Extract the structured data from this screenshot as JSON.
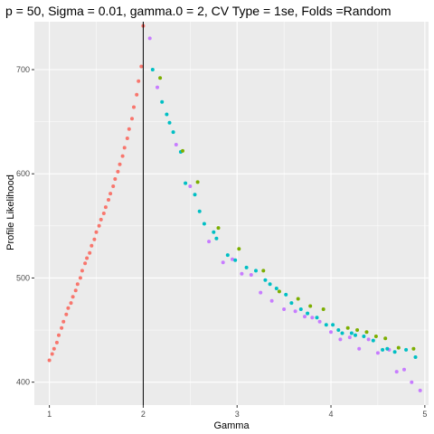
{
  "chart_data": {
    "type": "scatter",
    "title": "p = 50, Sigma = 0.01, gamma.0 = 2, CV Type = 1se, Folds =Random",
    "xlabel": "Gamma",
    "ylabel": "Profile Likelihood",
    "xlim": [
      0.84,
      5.04
    ],
    "ylim": [
      378,
      746
    ],
    "xticks": [
      1,
      2,
      3,
      4,
      5
    ],
    "xtick_labels": [
      "1",
      "2",
      "3",
      "4",
      "5"
    ],
    "yticks": [
      400,
      500,
      600,
      700
    ],
    "ytick_labels": [
      "400",
      "500",
      "600",
      "700"
    ],
    "grid": true,
    "legend": "none",
    "vline": {
      "x": 2,
      "color": "#000000"
    },
    "colors": {
      "panel_bg": "#ebebeb",
      "grid_major": "#ffffff",
      "red": "#f8766d",
      "olive": "#7cae00",
      "teal": "#00bfc4",
      "purple": "#c77cff"
    },
    "series": [
      {
        "color": "#f8766d",
        "x": [
          1.0,
          1.03,
          1.05,
          1.08,
          1.1,
          1.13,
          1.15,
          1.18,
          1.2,
          1.23,
          1.25,
          1.28,
          1.3,
          1.33,
          1.35,
          1.38,
          1.4,
          1.43,
          1.45,
          1.48,
          1.5,
          1.53,
          1.55,
          1.58,
          1.6,
          1.63,
          1.65,
          1.68,
          1.7,
          1.73,
          1.75,
          1.78,
          1.8,
          1.83,
          1.85,
          1.88,
          1.9,
          1.93,
          1.95,
          1.98,
          2.0
        ],
        "y": [
          421,
          427,
          432,
          438,
          445,
          452,
          458,
          465,
          471,
          476,
          482,
          488,
          494,
          500,
          507,
          514,
          519,
          524,
          531,
          537,
          544,
          550,
          556,
          562,
          568,
          575,
          581,
          588,
          595,
          602,
          609,
          617,
          625,
          634,
          643,
          653,
          664,
          676,
          689,
          703,
          742
        ]
      },
      {
        "color": "#c77cff",
        "x": [
          2.07,
          2.15,
          2.35,
          2.5,
          2.7,
          2.85,
          2.95,
          3.05,
          3.15,
          3.25,
          3.37,
          3.5,
          3.62,
          3.72,
          3.8,
          3.88,
          4.0,
          4.1,
          4.2,
          4.3,
          4.4,
          4.5,
          4.62,
          4.7,
          4.78,
          4.86,
          4.95
        ],
        "y": [
          730,
          683,
          628,
          588,
          535,
          515,
          518,
          504,
          503,
          486,
          478,
          470,
          468,
          463,
          462,
          458,
          448,
          441,
          443,
          432,
          441,
          428,
          431,
          410,
          412,
          400,
          392
        ]
      },
      {
        "color": "#00bfc4",
        "x": [
          2.1,
          2.2,
          2.25,
          2.28,
          2.32,
          2.4,
          2.45,
          2.55,
          2.6,
          2.65,
          2.75,
          2.78,
          2.9,
          2.98,
          3.1,
          3.2,
          3.3,
          3.35,
          3.42,
          3.52,
          3.58,
          3.68,
          3.75,
          3.85,
          3.95,
          4.02,
          4.08,
          4.12,
          4.22,
          4.26,
          4.35,
          4.45,
          4.55,
          4.6,
          4.68,
          4.8,
          4.9
        ],
        "y": [
          700,
          669,
          657,
          649,
          640,
          621,
          591,
          580,
          564,
          552,
          544,
          538,
          522,
          517,
          510,
          507,
          498,
          494,
          490,
          484,
          476,
          470,
          466,
          462,
          455,
          455,
          450,
          447,
          447,
          445,
          444,
          440,
          431,
          432,
          429,
          431,
          424
        ]
      },
      {
        "color": "#7cae00",
        "x": [
          2.18,
          2.42,
          2.58,
          2.8,
          3.02,
          3.28,
          3.45,
          3.65,
          3.78,
          3.92,
          4.18,
          4.28,
          4.38,
          4.48,
          4.58,
          4.72,
          4.88
        ],
        "y": [
          692,
          622,
          592,
          548,
          528,
          507,
          487,
          480,
          473,
          470,
          452,
          450,
          448,
          444,
          442,
          433,
          432
        ]
      }
    ]
  }
}
